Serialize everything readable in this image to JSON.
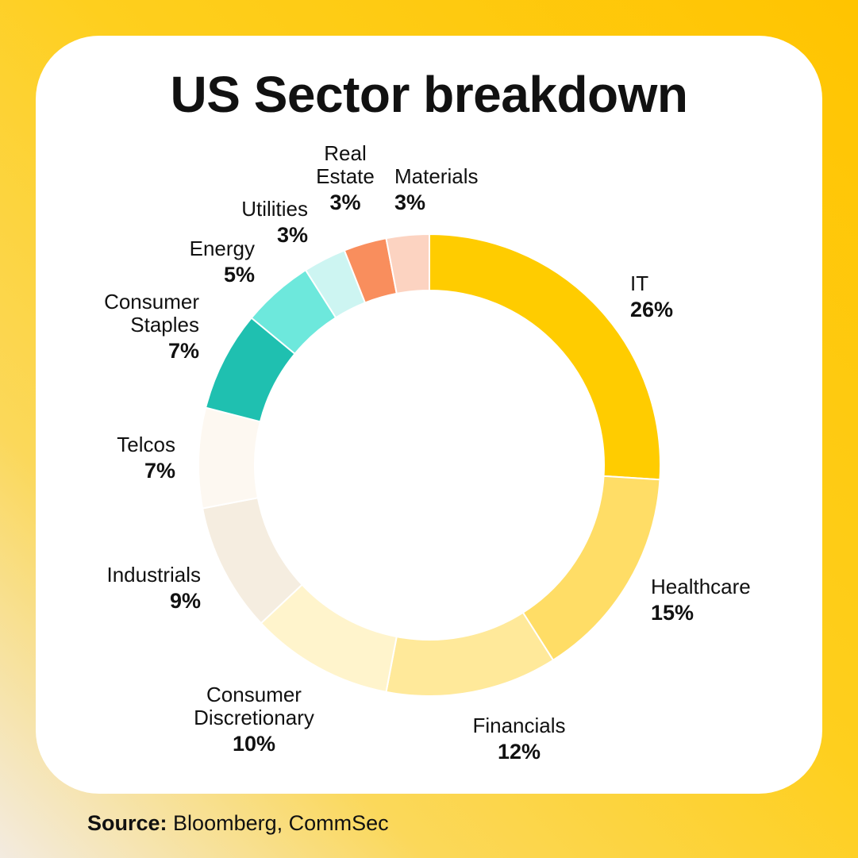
{
  "header": {
    "title": "US Sector breakdown"
  },
  "footer": {
    "source_label": "Source:",
    "source_text": "Bloomberg, CommSec"
  },
  "chart_data": {
    "type": "pie",
    "donut": true,
    "title": "US Sector breakdown",
    "unit": "%",
    "slices": [
      {
        "name": "IT",
        "value": 26,
        "label": "26%",
        "color": "#ffcc00"
      },
      {
        "name": "Healthcare",
        "value": 15,
        "label": "15%",
        "color": "#ffdd66"
      },
      {
        "name": "Financials",
        "value": 12,
        "label": "12%",
        "color": "#ffe99a"
      },
      {
        "name": "Consumer Discretionary",
        "value": 10,
        "label": "10%",
        "color": "#fff4cc"
      },
      {
        "name": "Industrials",
        "value": 9,
        "label": "9%",
        "color": "#f5ede0"
      },
      {
        "name": "Telcos",
        "value": 7,
        "label": "7%",
        "color": "#fdf8f1"
      },
      {
        "name": "Consumer Staples",
        "value": 7,
        "label": "7%",
        "color": "#1fc0b0"
      },
      {
        "name": "Energy",
        "value": 5,
        "label": "5%",
        "color": "#6de8dc"
      },
      {
        "name": "Utilities",
        "value": 3,
        "label": "3%",
        "color": "#cdf5f2"
      },
      {
        "name": "Real Estate",
        "value": 3,
        "label": "3%",
        "color": "#f98e5d"
      },
      {
        "name": "Materials",
        "value": 3,
        "label": "3%",
        "color": "#fcd3c1"
      }
    ]
  }
}
